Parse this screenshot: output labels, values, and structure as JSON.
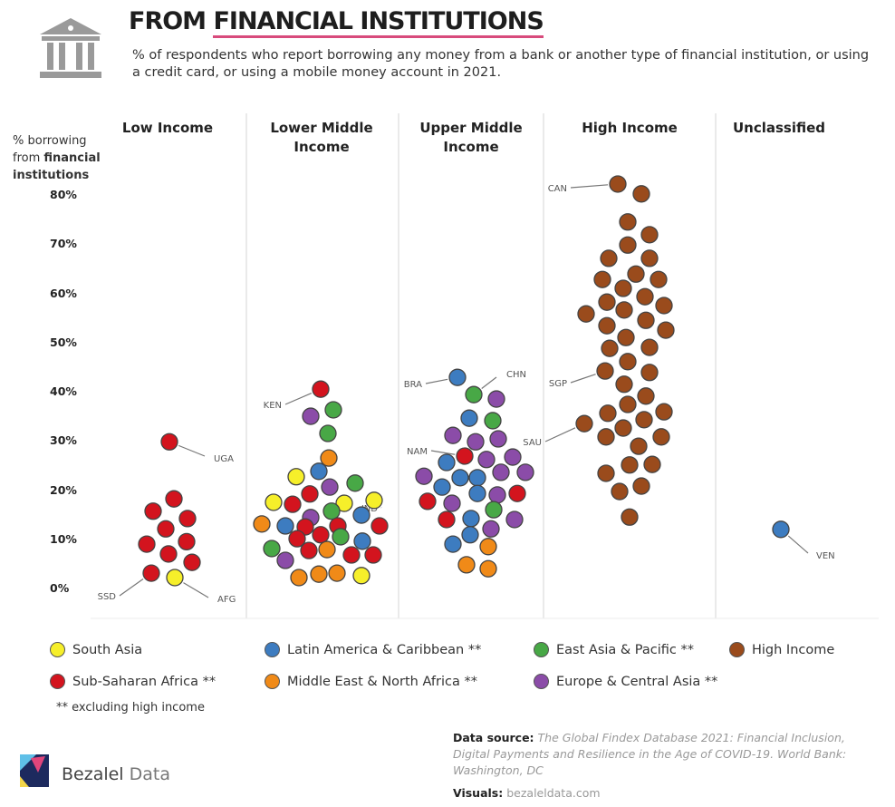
{
  "header": {
    "title_prefix": "FROM ",
    "title_underlined": "FINANCIAL INSTITUTIONS",
    "subtitle": "% of respondents who report borrowing any money from a bank or another type of financial institution, or using a credit card, or using a mobile money account in 2021.",
    "icon": "bank-icon"
  },
  "chart_data": {
    "type": "scatter",
    "subtype": "beeswarm",
    "title": "FROM FINANCIAL INSTITUTIONS",
    "ylabel_plain1": "% borrowing",
    "ylabel_plain2": "from ",
    "ylabel_bold2": "financial",
    "ylabel_bold3": "institutions",
    "ylim": [
      0,
      80
    ],
    "yticks": [
      "0%",
      "10%",
      "20%",
      "30%",
      "40%",
      "50%",
      "60%",
      "70%",
      "80%"
    ],
    "grid": false,
    "categories": [
      "Low Income",
      "Lower Middle Income",
      "Upper Middle Income",
      "High Income",
      "Unclassified"
    ],
    "category_lines": [
      [
        "Low Income"
      ],
      [
        "Lower Middle",
        "Income"
      ],
      [
        "Upper Middle",
        "Income"
      ],
      [
        "High Income"
      ],
      [
        "Unclassified"
      ]
    ],
    "regions": {
      "sa": {
        "name": "South Asia",
        "color": "#f6ef2a"
      },
      "lac": {
        "name": "Latin America & Caribbean **",
        "color": "#3d7cc0"
      },
      "eap": {
        "name": "East Asia & Pacific **",
        "color": "#48a846"
      },
      "hi": {
        "name": "High Income",
        "color": "#9a4b1c"
      },
      "ssa": {
        "name": "Sub-Saharan Africa **",
        "color": "#d3141e"
      },
      "mena": {
        "name": "Middle East & North Africa **",
        "color": "#f08a18"
      },
      "eca": {
        "name": "Europe & Central Asia **",
        "color": "#8b4ca8"
      }
    },
    "legend_order": [
      "sa",
      "lac",
      "eap",
      "hi",
      "ssa",
      "mena",
      "eca"
    ],
    "legend_note": "** excluding high income",
    "series": [
      {
        "name": "Low Income",
        "points": [
          {
            "r": "ssa",
            "v": 30.0,
            "label": "UGA"
          },
          {
            "r": "ssa",
            "v": 18.4
          },
          {
            "r": "ssa",
            "v": 15.9
          },
          {
            "r": "ssa",
            "v": 14.4
          },
          {
            "r": "ssa",
            "v": 12.3
          },
          {
            "r": "ssa",
            "v": 9.2
          },
          {
            "r": "ssa",
            "v": 9.7
          },
          {
            "r": "ssa",
            "v": 7.2
          },
          {
            "r": "ssa",
            "v": 5.5
          },
          {
            "r": "ssa",
            "v": 3.3,
            "label": "SSD"
          },
          {
            "r": "sa",
            "v": 2.4,
            "label": "AFG"
          }
        ]
      },
      {
        "name": "Lower Middle Income",
        "points": [
          {
            "r": "ssa",
            "v": 40.7,
            "label": "KEN"
          },
          {
            "r": "eca",
            "v": 35.2
          },
          {
            "r": "eap",
            "v": 36.5
          },
          {
            "r": "eap",
            "v": 31.7
          },
          {
            "r": "mena",
            "v": 26.7
          },
          {
            "r": "lac",
            "v": 24.0
          },
          {
            "r": "sa",
            "v": 22.9
          },
          {
            "r": "eap",
            "v": 21.6
          },
          {
            "r": "eca",
            "v": 20.8
          },
          {
            "r": "ssa",
            "v": 19.4
          },
          {
            "r": "sa",
            "v": 17.7
          },
          {
            "r": "ssa",
            "v": 17.3
          },
          {
            "r": "sa",
            "v": 17.5
          },
          {
            "r": "sa",
            "v": 18.1,
            "label": "IND"
          },
          {
            "r": "eap",
            "v": 15.9
          },
          {
            "r": "eca",
            "v": 14.6
          },
          {
            "r": "lac",
            "v": 15.1
          },
          {
            "r": "mena",
            "v": 13.3
          },
          {
            "r": "lac",
            "v": 12.9
          },
          {
            "r": "ssa",
            "v": 12.7
          },
          {
            "r": "ssa",
            "v": 12.9
          },
          {
            "r": "ssa",
            "v": 12.9
          },
          {
            "r": "ssa",
            "v": 10.3
          },
          {
            "r": "ssa",
            "v": 11.1
          },
          {
            "r": "eap",
            "v": 10.7
          },
          {
            "r": "lac",
            "v": 9.8
          },
          {
            "r": "eap",
            "v": 8.3
          },
          {
            "r": "ssa",
            "v": 7.9
          },
          {
            "r": "mena",
            "v": 8.1
          },
          {
            "r": "ssa",
            "v": 7.0
          },
          {
            "r": "ssa",
            "v": 7.0
          },
          {
            "r": "eca",
            "v": 5.9
          },
          {
            "r": "mena",
            "v": 2.4
          },
          {
            "r": "mena",
            "v": 3.1
          },
          {
            "r": "mena",
            "v": 3.3
          },
          {
            "r": "sa",
            "v": 2.8
          }
        ]
      },
      {
        "name": "Upper Middle Income",
        "points": [
          {
            "r": "lac",
            "v": 43.1,
            "label": "BRA"
          },
          {
            "r": "eap",
            "v": 39.6,
            "label": "CHN"
          },
          {
            "r": "eca",
            "v": 38.7
          },
          {
            "r": "lac",
            "v": 34.8
          },
          {
            "r": "eap",
            "v": 34.3
          },
          {
            "r": "eca",
            "v": 31.3
          },
          {
            "r": "eca",
            "v": 30.0
          },
          {
            "r": "eca",
            "v": 30.6
          },
          {
            "r": "ssa",
            "v": 27.1,
            "label": "NAM"
          },
          {
            "r": "lac",
            "v": 25.8
          },
          {
            "r": "eca",
            "v": 26.4
          },
          {
            "r": "eca",
            "v": 26.9
          },
          {
            "r": "eca",
            "v": 23.0
          },
          {
            "r": "lac",
            "v": 22.7
          },
          {
            "r": "lac",
            "v": 22.7
          },
          {
            "r": "eca",
            "v": 23.8
          },
          {
            "r": "eca",
            "v": 23.8
          },
          {
            "r": "lac",
            "v": 20.8
          },
          {
            "r": "lac",
            "v": 19.5
          },
          {
            "r": "eca",
            "v": 19.2
          },
          {
            "r": "ssa",
            "v": 19.5
          },
          {
            "r": "ssa",
            "v": 17.9
          },
          {
            "r": "eca",
            "v": 17.5
          },
          {
            "r": "eap",
            "v": 16.2
          },
          {
            "r": "ssa",
            "v": 14.2
          },
          {
            "r": "lac",
            "v": 14.4
          },
          {
            "r": "eca",
            "v": 14.2
          },
          {
            "r": "eca",
            "v": 12.3
          },
          {
            "r": "lac",
            "v": 11.1
          },
          {
            "r": "lac",
            "v": 9.2
          },
          {
            "r": "mena",
            "v": 8.7
          },
          {
            "r": "mena",
            "v": 5.0
          },
          {
            "r": "mena",
            "v": 4.2
          }
        ]
      },
      {
        "name": "High Income",
        "points": [
          {
            "r": "hi",
            "v": 82.4,
            "label": "CAN"
          },
          {
            "r": "hi",
            "v": 80.4
          },
          {
            "r": "hi",
            "v": 74.7
          },
          {
            "r": "hi",
            "v": 72.1
          },
          {
            "r": "hi",
            "v": 70.0
          },
          {
            "r": "hi",
            "v": 67.3
          },
          {
            "r": "hi",
            "v": 67.3
          },
          {
            "r": "hi",
            "v": 64.1
          },
          {
            "r": "hi",
            "v": 63.0
          },
          {
            "r": "hi",
            "v": 63.0
          },
          {
            "r": "hi",
            "v": 61.2
          },
          {
            "r": "hi",
            "v": 59.5
          },
          {
            "r": "hi",
            "v": 58.4
          },
          {
            "r": "hi",
            "v": 57.7
          },
          {
            "r": "hi",
            "v": 56.8
          },
          {
            "r": "hi",
            "v": 56.0
          },
          {
            "r": "hi",
            "v": 54.7
          },
          {
            "r": "hi",
            "v": 53.6
          },
          {
            "r": "hi",
            "v": 52.7
          },
          {
            "r": "hi",
            "v": 51.2
          },
          {
            "r": "hi",
            "v": 49.0
          },
          {
            "r": "hi",
            "v": 49.2
          },
          {
            "r": "hi",
            "v": 46.3
          },
          {
            "r": "hi",
            "v": 44.4,
            "label": "SGP"
          },
          {
            "r": "hi",
            "v": 44.1
          },
          {
            "r": "hi",
            "v": 41.7
          },
          {
            "r": "hi",
            "v": 39.3
          },
          {
            "r": "hi",
            "v": 37.6
          },
          {
            "r": "hi",
            "v": 35.8
          },
          {
            "r": "hi",
            "v": 36.1
          },
          {
            "r": "hi",
            "v": 33.7,
            "label": "SAU"
          },
          {
            "r": "hi",
            "v": 34.5
          },
          {
            "r": "hi",
            "v": 32.8
          },
          {
            "r": "hi",
            "v": 31.0
          },
          {
            "r": "hi",
            "v": 31.0
          },
          {
            "r": "hi",
            "v": 29.1
          },
          {
            "r": "hi",
            "v": 23.6
          },
          {
            "r": "hi",
            "v": 25.3
          },
          {
            "r": "hi",
            "v": 25.4
          },
          {
            "r": "hi",
            "v": 19.9
          },
          {
            "r": "hi",
            "v": 21.0
          },
          {
            "r": "hi",
            "v": 14.7
          }
        ]
      },
      {
        "name": "Unclassified",
        "points": [
          {
            "r": "lac",
            "v": 12.2,
            "label": "VEN"
          }
        ]
      }
    ]
  },
  "footer": {
    "source_label": "Data source:",
    "source_text": "The Global Findex Database 2021: Financial Inclusion, Digital Payments and Resilience in the Age of COVID-19. World Bank: Washington, DC",
    "visuals_label": "Visuals:",
    "visuals_text": "bezaleldata.com",
    "brand_bold": "Bezalel",
    "brand_light": " Data"
  }
}
